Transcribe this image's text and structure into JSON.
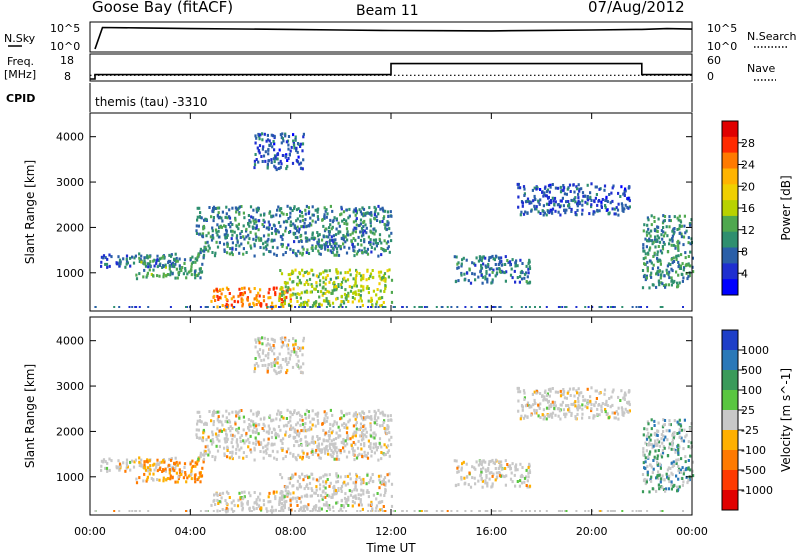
{
  "header": {
    "radar": "Goose Bay (fitACF)",
    "beam": "Beam 11",
    "date": "07/Aug/2012"
  },
  "noise_panel": {
    "left_label": "N.Sky",
    "right_label": "N.Search",
    "left_ticks": [
      "10^5",
      "10^0"
    ],
    "right_ticks": [
      "10^5",
      "10^0"
    ]
  },
  "freq_panel": {
    "left_label_top": "Freq.",
    "left_label_bottom": "[MHz]",
    "left_ticks": [
      "18",
      "8"
    ],
    "right_label": "Nave",
    "right_ticks": [
      "60",
      "0"
    ]
  },
  "cpid_panel": {
    "label": "CPID",
    "text": "themis (tau) -3310"
  },
  "axes": {
    "xlabel": "Time UT",
    "xticks": [
      "00:00",
      "04:00",
      "08:00",
      "12:00",
      "16:00",
      "20:00",
      "00:00"
    ],
    "ylabel": "Slant Range [km]",
    "yticks": [
      "1000",
      "2000",
      "3000",
      "4000"
    ]
  },
  "power_colorbar": {
    "label": "Power [dB]",
    "ticks": [
      "28",
      "24",
      "20",
      "16",
      "12",
      "8",
      "4"
    ],
    "colors": [
      "#e00000",
      "#ff2a00",
      "#ff7a00",
      "#ffb400",
      "#f0d000",
      "#b8d200",
      "#4fa84f",
      "#2f8f6f",
      "#2a5fa8",
      "#1f2fd0",
      "#0000ff"
    ]
  },
  "velocity_colorbar": {
    "label": "Velocity [m s^-1]",
    "ticks": [
      "1000",
      "500",
      "100",
      "25",
      "-25",
      "-100",
      "-500",
      "-1000"
    ],
    "colors": [
      "#1f3fc8",
      "#2a78b8",
      "#3a9a5a",
      "#59c640",
      "#c8c8c8",
      "#ffb000",
      "#ff7a00",
      "#ff3a00",
      "#e00000"
    ]
  },
  "chart_data": [
    {
      "type": "line",
      "title": "N.Sky / N.Search",
      "xlabel": "Time UT",
      "ylabel": "N.Sky",
      "x_range": [
        "00:00",
        "24:00"
      ],
      "y_scale": "log",
      "ylim": [
        1,
        100000
      ],
      "series": [
        {
          "name": "N.Sky",
          "x_hours": [
            0.2,
            0.5,
            2,
            4,
            6,
            8,
            10,
            12,
            14,
            16,
            18,
            20,
            22,
            23,
            24
          ],
          "values": [
            1,
            30000,
            25000,
            18000,
            15000,
            12000,
            9000,
            7000,
            6500,
            6000,
            7500,
            9000,
            12000,
            18000,
            14000
          ]
        }
      ]
    },
    {
      "type": "line",
      "title": "Freq. / Nave",
      "xlabel": "Time UT",
      "ylabel": "Freq. [MHz]",
      "ylim": [
        8,
        18
      ],
      "series": [
        {
          "name": "Freq.",
          "x_hours": [
            0,
            0.2,
            0.2,
            12,
            12,
            22,
            22,
            24
          ],
          "values": [
            8,
            8,
            10,
            10,
            15,
            15,
            10,
            10
          ]
        },
        {
          "name": "Nave",
          "x_hours": [
            0,
            24
          ],
          "values": [
            10,
            10
          ]
        }
      ]
    },
    {
      "type": "heatmap",
      "title": "Power",
      "xlabel": "Time UT",
      "ylabel": "Slant Range [km]",
      "x_range_hours": [
        0,
        24
      ],
      "ylim": [
        180,
        4500
      ],
      "colorbar": "Power [dB]",
      "zlim": [
        0,
        30
      ],
      "regions": [
        {
          "t0": 0.4,
          "t1": 3.5,
          "r0": 1150,
          "r1": 1450,
          "level": 6
        },
        {
          "t0": 1.8,
          "t1": 4.5,
          "r0": 900,
          "r1": 1400,
          "level": 10
        },
        {
          "t0": 4.2,
          "t1": 12.0,
          "r0": 1400,
          "r1": 2500,
          "level": 8
        },
        {
          "t0": 6.5,
          "t1": 8.5,
          "r0": 3300,
          "r1": 4100,
          "level": 5
        },
        {
          "t0": 4.8,
          "t1": 8.0,
          "r0": 250,
          "r1": 700,
          "level": 24
        },
        {
          "t0": 7.5,
          "t1": 12.0,
          "r0": 300,
          "r1": 1100,
          "level": 14
        },
        {
          "t0": 14.5,
          "t1": 17.5,
          "r0": 800,
          "r1": 1400,
          "level": 7
        },
        {
          "t0": 17.0,
          "t1": 21.5,
          "r0": 2300,
          "r1": 3000,
          "level": 5
        },
        {
          "t0": 22.0,
          "t1": 24.0,
          "r0": 700,
          "r1": 2300,
          "level": 9
        }
      ]
    },
    {
      "type": "heatmap",
      "title": "Velocity",
      "xlabel": "Time UT",
      "ylabel": "Slant Range [km]",
      "x_range_hours": [
        0,
        24
      ],
      "ylim": [
        180,
        4500
      ],
      "colorbar": "Velocity [m s^-1]",
      "zlim": [
        -1000,
        1000
      ],
      "regions": [
        {
          "t0": 0.4,
          "t1": 3.5,
          "r0": 1150,
          "r1": 1450,
          "level": 0
        },
        {
          "t0": 1.8,
          "t1": 4.5,
          "r0": 900,
          "r1": 1400,
          "level": -300
        },
        {
          "t0": 4.2,
          "t1": 12.0,
          "r0": 1400,
          "r1": 2500,
          "level": 0
        },
        {
          "t0": 6.5,
          "t1": 8.5,
          "r0": 3300,
          "r1": 4100,
          "level": 0
        },
        {
          "t0": 4.8,
          "t1": 8.0,
          "r0": 250,
          "r1": 700,
          "level": 0
        },
        {
          "t0": 7.5,
          "t1": 12.0,
          "r0": 300,
          "r1": 1100,
          "level": 0
        },
        {
          "t0": 14.5,
          "t1": 17.5,
          "r0": 800,
          "r1": 1400,
          "level": 0
        },
        {
          "t0": 17.0,
          "t1": 21.5,
          "r0": 2300,
          "r1": 3000,
          "level": 0
        },
        {
          "t0": 22.0,
          "t1": 24.0,
          "r0": 700,
          "r1": 2300,
          "level": 50
        }
      ]
    }
  ]
}
